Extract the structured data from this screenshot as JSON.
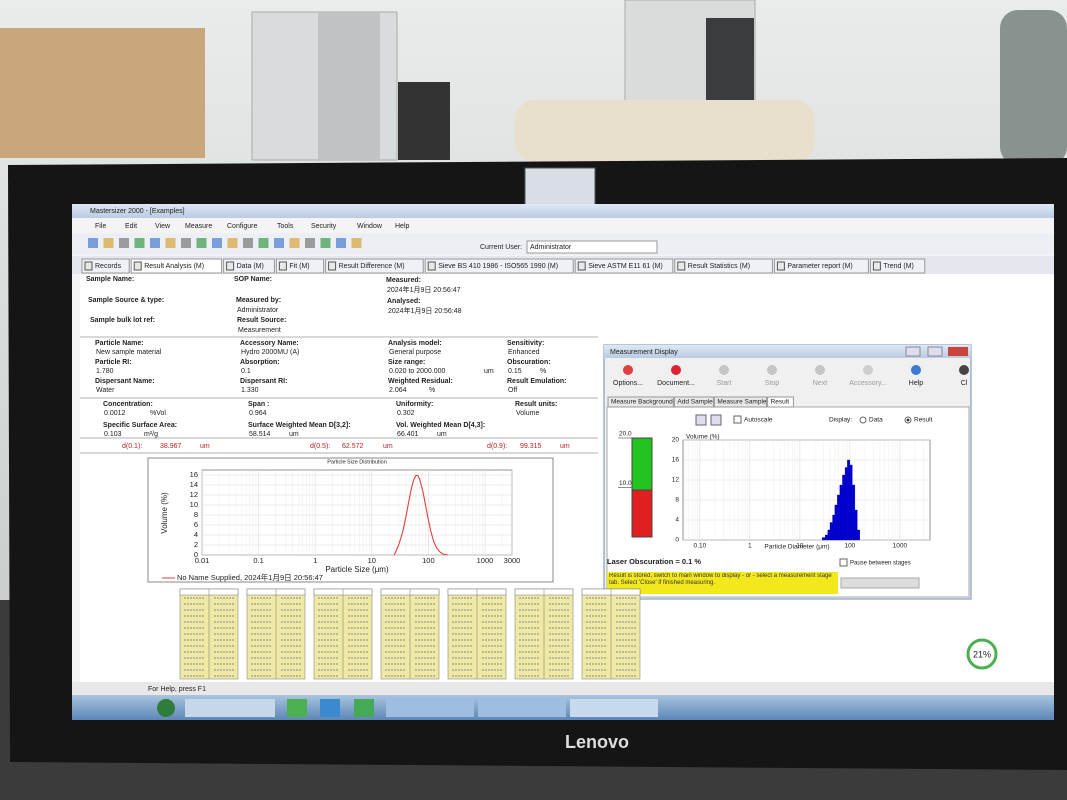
{
  "photo": {
    "brand": "Lenovo"
  },
  "window": {
    "title": "Mastersizer 2000 - [Examples]",
    "menu": [
      "File",
      "Edit",
      "View",
      "Measure",
      "Configure",
      "Tools",
      "Security",
      "Window",
      "Help"
    ],
    "current_user_label": "Current User:",
    "current_user": "Administrator"
  },
  "tabs": [
    "Records",
    "Result Analysis (M)",
    "Data (M)",
    "Fit (M)",
    "Result Difference (M)",
    "Sieve BS 410 1986 - ISO565 1990 (M)",
    "Sieve ASTM E11 61 (M)",
    "Result Statistics (M)",
    "Parameter report (M)",
    "Trend (M)"
  ],
  "sample_info": [
    {
      "label": "Sample Name:"
    },
    {
      "label": "SOP Name:"
    },
    {
      "label": "Measured:",
      "value": "2024年1月9日 20:56:47"
    },
    {
      "label": "Sample Source & type:"
    },
    {
      "label": "Measured by:",
      "value": "Administrator"
    },
    {
      "label": "Analysed:",
      "value": "2024年1月9日 20:56:48"
    },
    {
      "label": "Sample bulk lot ref:"
    },
    {
      "label": "Result Source:",
      "value": "Measurement"
    }
  ],
  "parameters": [
    {
      "label": "Particle Name:",
      "value": "New sample material"
    },
    {
      "label": "Accessory Name:",
      "value": "Hydro 2000MU (A)"
    },
    {
      "label": "Analysis model:",
      "value": "General purpose"
    },
    {
      "label": "Sensitivity:",
      "value": "Enhanced"
    },
    {
      "label": "Particle RI:",
      "value": "1.780"
    },
    {
      "label": "Absorption:",
      "value": "0.1"
    },
    {
      "label": "Size range:",
      "value": "0.020   to   2000.000",
      "unit": "um"
    },
    {
      "label": "Obscuration:",
      "value": "0.15",
      "unit": "%"
    },
    {
      "label": "Dispersant Name:",
      "value": "Water"
    },
    {
      "label": "Dispersant RI:",
      "value": "1.330"
    },
    {
      "label": "Weighted Residual:",
      "value": "2.064",
      "unit": "%"
    },
    {
      "label": "Result Emulation:",
      "value": "Off"
    },
    {
      "label": "Concentration:",
      "value": "0.0012",
      "unit": "%Vol"
    },
    {
      "label": "Span :",
      "value": "0.964"
    },
    {
      "label": "Uniformity:",
      "value": "0.302"
    },
    {
      "label": "Result units:",
      "value": "Volume"
    },
    {
      "label": "Specific Surface Area:",
      "value": "0.103",
      "unit": "m²/g"
    },
    {
      "label": "Surface Weighted Mean D[3,2]:",
      "value": "58.514",
      "unit": "um"
    },
    {
      "label": "Vol. Weighted Mean D[4,3]:",
      "value": "66.401",
      "unit": "um"
    }
  ],
  "percentiles": [
    {
      "label": "d(0.1):",
      "value": "38.967",
      "unit": "um"
    },
    {
      "label": "d(0.5):",
      "value": "62.572",
      "unit": "um"
    },
    {
      "label": "d(0.9):",
      "value": "99.315",
      "unit": "um"
    }
  ],
  "chart": {
    "type": "line",
    "title": "Particle Size Distribution",
    "xlabel": "Particle Size (μm)",
    "ylabel": "Volume (%)",
    "xscale": "log",
    "xlim": [
      0.01,
      3000
    ],
    "ylim": [
      0,
      17
    ],
    "xticks": [
      0.01,
      0.1,
      1,
      10,
      100,
      1000,
      3000
    ],
    "yticks": [
      0,
      2,
      4,
      6,
      8,
      10,
      12,
      14,
      16
    ],
    "grid": true,
    "x": [
      25,
      30,
      35,
      40,
      45,
      50,
      55,
      60,
      65,
      70,
      80,
      90,
      100,
      110,
      125,
      140,
      160,
      180,
      220
    ],
    "values": [
      0,
      2.1,
      4.5,
      7.6,
      10.7,
      13.3,
      15,
      15.9,
      15.9,
      15.2,
      12.7,
      9.7,
      7,
      4.8,
      2.6,
      1.4,
      0.6,
      0.2,
      0
    ],
    "color": "#e04040",
    "legend": "No Name Supplied, 2024年1月9日 20:56:47"
  },
  "measurement_display": {
    "title": "Measurement Display",
    "buttons": [
      "Options...",
      "Document...",
      "Start",
      "Stop",
      "Next",
      "Accessory...",
      "Help",
      "Cl"
    ],
    "tabs": [
      "Measure Background",
      "Add Sample",
      "Measure Sample",
      "Result"
    ],
    "autoscale": "Autoscale",
    "display_label": "Display:",
    "display_options": [
      "Data",
      "Result"
    ],
    "obscuration": {
      "ylim": [
        0,
        20
      ],
      "yticks": [
        {
          "value": 20,
          "label": "20.0"
        },
        {
          "value": 10,
          "label": "10.0"
        }
      ]
    },
    "histogram": {
      "type": "histogram",
      "xlabel": "Particle Diameter (μm)",
      "ylabel": "Volume (%)",
      "xscale": "log",
      "xlim": [
        0.046,
        4000
      ],
      "ylim": [
        0,
        20
      ],
      "xticks": [
        {
          "value": 0.1,
          "label": "0.10"
        },
        1,
        10,
        100,
        1000
      ],
      "yticks": [
        0,
        4,
        8,
        12,
        16,
        20
      ],
      "grid": true,
      "bins": [
        28,
        32,
        36,
        40,
        45,
        50,
        56,
        63,
        71,
        80,
        89,
        100,
        112,
        126,
        141,
        158
      ],
      "values": [
        0.5,
        1,
        2,
        3.5,
        5,
        7,
        9,
        11,
        13,
        14.5,
        16,
        15,
        11,
        6,
        2
      ],
      "color": "#0000cc"
    },
    "laser_obscuration": "Laser Obscuration = 0.1 %",
    "message": "Result is stored, switch to main window to display - or - select a measurement stage tab. Select 'Close' if finished measuring.",
    "pause": "Pause between stages"
  },
  "status_bar": "For Help, press F1",
  "system_tray": {
    "cpu": "21%"
  }
}
